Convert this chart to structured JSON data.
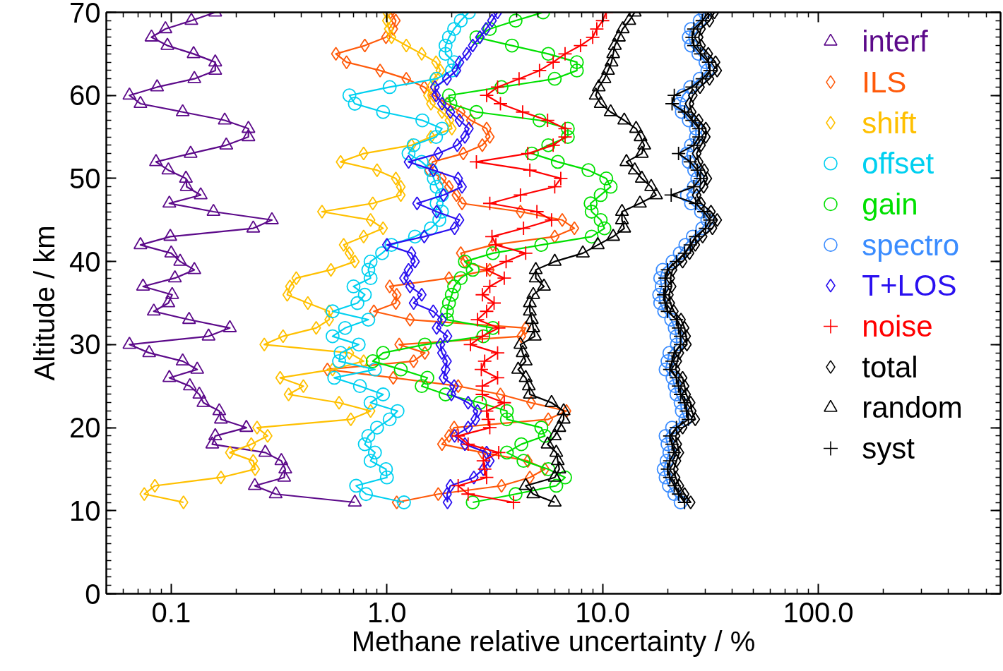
{
  "chart_data": {
    "type": "line",
    "xlabel": "Methane relative uncertainty / %",
    "ylabel": "Altitude / km",
    "log": "x",
    "grid": false,
    "legend": "top right",
    "xlim": [
      0.05,
      700
    ],
    "xticks": [
      {
        "value": 0.1,
        "label": "0.1"
      },
      {
        "value": 1,
        "label": "1.0"
      },
      {
        "value": 10,
        "label": "10.0"
      },
      {
        "value": 100,
        "label": "100.0"
      }
    ],
    "ylim": [
      0,
      70
    ],
    "yticks": [
      0,
      10,
      20,
      30,
      40,
      50,
      60,
      70
    ],
    "series": [
      {
        "name": "interf",
        "color": "#5c0a8a",
        "marker": "triangle",
        "x": [
          0.71,
          0.305,
          0.244,
          0.334,
          0.338,
          0.324,
          0.273,
          0.155,
          0.16,
          0.223,
          0.17,
          0.167,
          0.141,
          0.135,
          0.122,
          0.098,
          0.132,
          0.113,
          0.079,
          0.064,
          0.149,
          0.187,
          0.121,
          0.083,
          0.097,
          0.101,
          0.074,
          0.104,
          0.128,
          0.11,
          0.1,
          0.072,
          0.099,
          0.24,
          0.293,
          0.157,
          0.098,
          0.137,
          0.118,
          0.117,
          0.097,
          0.085,
          0.123,
          0.18,
          0.228,
          0.228,
          0.177,
          0.113,
          0.072,
          0.064,
          0.086,
          0.128,
          0.16,
          0.16,
          0.127,
          0.096,
          0.081,
          0.094,
          0.124,
          0.16
        ],
        "values": [
          11,
          12,
          13,
          14,
          15,
          16,
          17,
          18,
          19,
          20,
          21,
          22,
          23,
          24,
          25,
          26,
          27,
          28,
          29,
          30,
          31,
          32,
          33,
          34,
          35,
          36,
          37,
          38,
          39,
          40,
          41,
          42,
          43,
          44,
          45,
          46,
          47,
          48,
          49,
          50,
          51,
          52,
          53,
          54,
          55,
          56,
          57,
          58,
          59,
          60,
          61,
          62,
          63,
          64,
          65,
          66,
          67,
          68,
          69,
          70
        ]
      },
      {
        "name": "ILS",
        "color": "#ff5a0a",
        "marker": "diamond",
        "x": [
          1.11,
          1.73,
          3.4,
          4.6,
          5.4,
          4.5,
          2.77,
          1.8,
          1.94,
          2.05,
          5.6,
          6.8,
          4.66,
          3.36,
          2.14,
          1.07,
          0.53,
          1.33,
          1.5,
          1.14,
          4.2,
          4.4,
          1.28,
          0.87,
          1.1,
          1.11,
          1.03,
          1.94,
          3.0,
          2.3,
          2.2,
          3.1,
          6.0,
          7.4,
          6.5,
          4.16,
          2.23,
          2.1,
          1.94,
          1.8,
          1.57,
          1.63,
          2.26,
          2.77,
          3.0,
          2.9,
          2.45,
          2.2,
          1.9,
          1.65,
          1.49,
          1.23,
          0.93,
          0.65,
          0.58,
          0.79,
          0.99,
          1.07,
          1.1,
          1.04
        ],
        "values": [
          11,
          12,
          13,
          14,
          15,
          16,
          17,
          18,
          19,
          20,
          21,
          22,
          23,
          24,
          25,
          26,
          27,
          28,
          29,
          30,
          31,
          32,
          33,
          34,
          35,
          36,
          37,
          38,
          39,
          40,
          41,
          42,
          43,
          44,
          45,
          46,
          47,
          48,
          49,
          50,
          51,
          52,
          53,
          54,
          55,
          56,
          57,
          58,
          59,
          60,
          61,
          62,
          63,
          64,
          65,
          66,
          67,
          68,
          69,
          70
        ]
      },
      {
        "name": "shift",
        "color": "#ffc000",
        "marker": "diamond",
        "x": [
          0.114,
          0.075,
          0.084,
          0.17,
          0.245,
          0.24,
          0.187,
          0.235,
          0.28,
          0.25,
          0.68,
          0.84,
          0.6,
          0.35,
          0.41,
          0.32,
          0.56,
          0.78,
          0.67,
          0.27,
          0.33,
          0.47,
          0.54,
          0.54,
          0.43,
          0.345,
          0.355,
          0.38,
          0.55,
          0.71,
          0.67,
          0.63,
          0.78,
          0.96,
          0.84,
          0.5,
          0.86,
          1.16,
          1.16,
          1.1,
          0.9,
          0.61,
          0.78,
          1.3,
          1.6,
          2.0,
          1.95,
          1.8,
          1.6,
          1.55,
          1.6,
          1.65,
          1.77,
          1.69,
          1.45,
          1.23,
          1.05,
          1.02,
          1.0,
          1.0
        ],
        "values": [
          11,
          12,
          13,
          14,
          15,
          16,
          17,
          18,
          19,
          20,
          21,
          22,
          23,
          24,
          25,
          26,
          27,
          28,
          29,
          30,
          31,
          32,
          33,
          34,
          35,
          36,
          37,
          38,
          39,
          40,
          41,
          42,
          43,
          44,
          45,
          46,
          47,
          48,
          49,
          50,
          51,
          52,
          53,
          54,
          55,
          56,
          57,
          58,
          59,
          60,
          61,
          62,
          63,
          64,
          65,
          66,
          67,
          68,
          69,
          70
        ]
      },
      {
        "name": "offset",
        "color": "#00d0f0",
        "marker": "circle",
        "x": [
          1.2,
          0.8,
          0.72,
          1.0,
          0.99,
          0.84,
          0.88,
          0.79,
          0.82,
          0.9,
          1.03,
          1.12,
          0.84,
          0.96,
          0.75,
          0.57,
          0.88,
          0.6,
          0.61,
          0.74,
          0.56,
          0.64,
          0.82,
          0.56,
          0.73,
          0.79,
          0.7,
          0.84,
          0.82,
          0.84,
          0.95,
          1.05,
          1.35,
          1.6,
          1.75,
          1.8,
          1.7,
          1.8,
          1.7,
          1.65,
          1.6,
          1.45,
          1.26,
          1.33,
          1.69,
          1.8,
          1.46,
          0.96,
          0.71,
          0.67,
          1.03,
          1.7,
          2.0,
          2.05,
          1.87,
          1.87,
          1.94,
          2.05,
          2.2,
          2.4
        ],
        "values": [
          11,
          12,
          13,
          14,
          15,
          16,
          17,
          18,
          19,
          20,
          21,
          22,
          23,
          24,
          25,
          26,
          27,
          28,
          29,
          30,
          31,
          32,
          33,
          34,
          35,
          36,
          37,
          38,
          39,
          40,
          41,
          42,
          43,
          44,
          45,
          46,
          47,
          48,
          49,
          50,
          51,
          52,
          53,
          54,
          55,
          56,
          57,
          58,
          59,
          60,
          61,
          62,
          63,
          64,
          65,
          66,
          67,
          68,
          69,
          70
        ]
      },
      {
        "name": "gain",
        "color": "#00e000",
        "marker": "circle",
        "x": [
          2.5,
          3.95,
          6.1,
          6.7,
          5.6,
          4.3,
          3.6,
          4.2,
          5.4,
          5.2,
          3.6,
          3.6,
          2.7,
          1.87,
          1.45,
          1.54,
          1.16,
          0.86,
          0.96,
          1.5,
          2.8,
          3.1,
          1.9,
          1.9,
          1.94,
          2.0,
          2.05,
          2.2,
          2.5,
          2.3,
          3.1,
          5.2,
          8.9,
          10.2,
          9.8,
          8.9,
          8.8,
          9.8,
          10.9,
          10.4,
          8.6,
          6.2,
          4.7,
          5.6,
          6.9,
          6.9,
          5.1,
          2.6,
          1.97,
          1.94,
          3.4,
          6.0,
          7.6,
          7.6,
          5.6,
          3.8,
          2.6,
          3.0,
          3.95,
          5.3
        ],
        "values": [
          11,
          12,
          13,
          14,
          15,
          16,
          17,
          18,
          19,
          20,
          21,
          22,
          23,
          24,
          25,
          26,
          27,
          28,
          29,
          30,
          31,
          32,
          33,
          34,
          35,
          36,
          37,
          38,
          39,
          40,
          41,
          42,
          43,
          44,
          45,
          46,
          47,
          48,
          49,
          50,
          51,
          52,
          53,
          54,
          55,
          56,
          57,
          58,
          59,
          60,
          61,
          62,
          63,
          64,
          65,
          66,
          67,
          68,
          69,
          70
        ]
      },
      {
        "name": "spectro",
        "color": "#3a8cff",
        "marker": "circle",
        "x": [
          23,
          21.5,
          20.3,
          19.6,
          19.2,
          19.8,
          20.4,
          20,
          19.6,
          21,
          24.2,
          23.3,
          23,
          22,
          21.6,
          21.1,
          19.6,
          20,
          20.4,
          22.1,
          22,
          21.6,
          20.8,
          19.3,
          18.5,
          18.3,
          18.8,
          18.5,
          19,
          21.1,
          22.8,
          24.2,
          26.2,
          29,
          30.6,
          28.6,
          25.7,
          24.6,
          26.5,
          27.5,
          26.6,
          25.1,
          24.6,
          25.7,
          27.1,
          27.1,
          25.1,
          23.3,
          22.8,
          23.6,
          25.5,
          28.2,
          30.6,
          30,
          27.8,
          25.7,
          25.1,
          25.7,
          28.2,
          29.7
        ],
        "values": [
          11,
          12,
          13,
          14,
          15,
          16,
          17,
          18,
          19,
          20,
          21,
          22,
          23,
          24,
          25,
          26,
          27,
          28,
          29,
          30,
          31,
          32,
          33,
          34,
          35,
          36,
          37,
          38,
          39,
          40,
          41,
          42,
          43,
          44,
          45,
          46,
          47,
          48,
          49,
          50,
          51,
          52,
          53,
          54,
          55,
          56,
          57,
          58,
          59,
          60,
          61,
          62,
          63,
          64,
          65,
          66,
          67,
          68,
          69,
          70
        ]
      },
      {
        "name": "T+LOS",
        "color": "#2a10f0",
        "marker": "diamond",
        "x": [
          1.91,
          1.9,
          1.97,
          2.53,
          2.8,
          3.0,
          2.9,
          2.3,
          2.06,
          2.38,
          2.57,
          2.63,
          2.38,
          1.99,
          2.05,
          1.83,
          1.87,
          1.9,
          1.8,
          1.77,
          1.91,
          1.7,
          1.8,
          1.64,
          1.33,
          1.45,
          1.28,
          1.2,
          1.26,
          1.35,
          1.3,
          1.0,
          1.49,
          2.06,
          2.17,
          1.7,
          1.38,
          1.83,
          2.23,
          2.14,
          1.64,
          1.26,
          1.73,
          2.12,
          2.3,
          2.4,
          2.17,
          1.97,
          1.8,
          1.69,
          1.67,
          1.9,
          2.1,
          2.17,
          2.35,
          2.5,
          2.7,
          2.88,
          3.07,
          3.26
        ],
        "values": [
          11,
          12,
          13,
          14,
          15,
          16,
          17,
          18,
          19,
          20,
          21,
          22,
          23,
          24,
          25,
          26,
          27,
          28,
          29,
          30,
          31,
          32,
          33,
          34,
          35,
          36,
          37,
          38,
          39,
          40,
          41,
          42,
          43,
          44,
          45,
          46,
          47,
          48,
          49,
          50,
          51,
          52,
          53,
          54,
          55,
          56,
          57,
          58,
          59,
          60,
          61,
          62,
          63,
          64,
          65,
          66,
          67,
          68,
          69,
          70
        ]
      },
      {
        "name": "noise",
        "color": "#ff0000",
        "marker": "cross",
        "x": [
          3.86,
          2.38,
          2.14,
          2.9,
          2.84,
          2.8,
          3.3,
          2.38,
          2.14,
          3.0,
          2.95,
          2.9,
          3.5,
          2.77,
          2.77,
          3.26,
          2.74,
          2.84,
          3.26,
          2.44,
          2.77,
          3.3,
          2.63,
          2.9,
          3.14,
          2.77,
          3.0,
          3.5,
          2.9,
          3.57,
          4.4,
          3.2,
          3.07,
          4.3,
          5.8,
          4.96,
          3.0,
          4.16,
          6.0,
          6.4,
          4.6,
          2.6,
          4.5,
          5.9,
          6.7,
          6.7,
          5.56,
          4.26,
          3.36,
          2.9,
          3.26,
          4.1,
          5.1,
          5.9,
          6.7,
          7.9,
          9.0,
          9.4,
          10,
          10.4
        ],
        "values": [
          11,
          12,
          13,
          14,
          15,
          16,
          17,
          18,
          19,
          20,
          21,
          22,
          23,
          24,
          25,
          26,
          27,
          28,
          29,
          30,
          31,
          32,
          33,
          34,
          35,
          36,
          37,
          38,
          39,
          40,
          41,
          42,
          43,
          44,
          45,
          46,
          47,
          48,
          49,
          50,
          51,
          52,
          53,
          54,
          55,
          56,
          57,
          58,
          59,
          60,
          61,
          62,
          63,
          64,
          65,
          66,
          67,
          68,
          69,
          70
        ]
      },
      {
        "name": "total",
        "color": "#000000",
        "marker": "diamond",
        "x": [
          25.6,
          24,
          22.7,
          21.8,
          21.4,
          22,
          22.7,
          22.2,
          21.8,
          23.5,
          26.9,
          25.9,
          25.6,
          24.4,
          24,
          23.5,
          21.8,
          22.2,
          22.7,
          24.6,
          24.4,
          24,
          23.1,
          21.4,
          20.6,
          20.3,
          20.9,
          20.6,
          21.1,
          23.5,
          25.3,
          26.9,
          29.1,
          32.3,
          34,
          31.8,
          28.6,
          27.3,
          29.4,
          30.6,
          29.6,
          27.9,
          27.3,
          28.6,
          30.1,
          30.1,
          27.9,
          25.9,
          25.3,
          26.2,
          28.3,
          31.3,
          34,
          33.4,
          30.9,
          28.6,
          27.9,
          28.6,
          31.3,
          33
        ],
        "values": [
          11,
          12,
          13,
          14,
          15,
          16,
          17,
          18,
          19,
          20,
          21,
          22,
          23,
          24,
          25,
          26,
          27,
          28,
          29,
          30,
          31,
          32,
          33,
          34,
          35,
          36,
          37,
          38,
          39,
          40,
          41,
          42,
          43,
          44,
          45,
          46,
          47,
          48,
          49,
          50,
          51,
          52,
          53,
          54,
          55,
          56,
          57,
          58,
          59,
          60,
          61,
          62,
          63,
          64,
          65,
          66,
          67,
          68,
          69,
          70
        ]
      },
      {
        "name": "random",
        "color": "#000000",
        "marker": "triangle",
        "x": [
          6.0,
          4.77,
          4.4,
          6.0,
          6.3,
          6.2,
          6.1,
          5.56,
          6.0,
          6.3,
          6.6,
          6.6,
          5.8,
          4.6,
          4.55,
          4.4,
          4.06,
          4.4,
          4.26,
          4.16,
          4.85,
          4.77,
          4.7,
          4.6,
          4.6,
          4.77,
          5.35,
          4.9,
          4.9,
          6.0,
          8.1,
          9.5,
          11.2,
          12.6,
          12.3,
          12.3,
          14.9,
          17.7,
          16.8,
          15.2,
          14.1,
          12.9,
          15.2,
          15.6,
          15,
          14.3,
          12.6,
          10.9,
          9.8,
          9.3,
          9.6,
          10.2,
          10.6,
          11.0,
          11.2,
          11.4,
          11.9,
          12.4,
          13.3,
          14.1
        ],
        "values": [
          11,
          12,
          13,
          14,
          15,
          16,
          17,
          18,
          19,
          20,
          21,
          22,
          23,
          24,
          25,
          26,
          27,
          28,
          29,
          30,
          31,
          32,
          33,
          34,
          35,
          36,
          37,
          38,
          39,
          40,
          41,
          42,
          43,
          44,
          45,
          46,
          47,
          48,
          49,
          50,
          51,
          52,
          53,
          54,
          55,
          56,
          57,
          58,
          59,
          60,
          61,
          62,
          63,
          64,
          65,
          66,
          67,
          68,
          69,
          70
        ]
      },
      {
        "name": "syst",
        "color": "#000000",
        "marker": "cross",
        "x": [
          24,
          22.5,
          21.5,
          20.5,
          20,
          20.5,
          21.5,
          21,
          20.5,
          22,
          25,
          24.5,
          24,
          23,
          22.5,
          22,
          20.5,
          21,
          21.5,
          23,
          23,
          22.5,
          22,
          20,
          19.5,
          19.2,
          19.6,
          19.5,
          20,
          22,
          24,
          25.5,
          27,
          30,
          31.5,
          29.5,
          27,
          20.8,
          26.5,
          28.5,
          27.5,
          25.5,
          22.5,
          26.5,
          28,
          28,
          26,
          24,
          21,
          21.5,
          26,
          29,
          31.5,
          31,
          28.5,
          26.5,
          26,
          26.5,
          29,
          31
        ],
        "values": [
          11,
          12,
          13,
          14,
          15,
          16,
          17,
          18,
          19,
          20,
          21,
          22,
          23,
          24,
          25,
          26,
          27,
          28,
          29,
          30,
          31,
          32,
          33,
          34,
          35,
          36,
          37,
          38,
          39,
          40,
          41,
          42,
          43,
          44,
          45,
          46,
          47,
          48,
          49,
          50,
          51,
          52,
          53,
          54,
          55,
          56,
          57,
          58,
          59,
          60,
          61,
          62,
          63,
          64,
          65,
          66,
          67,
          68,
          69,
          70
        ]
      }
    ]
  }
}
